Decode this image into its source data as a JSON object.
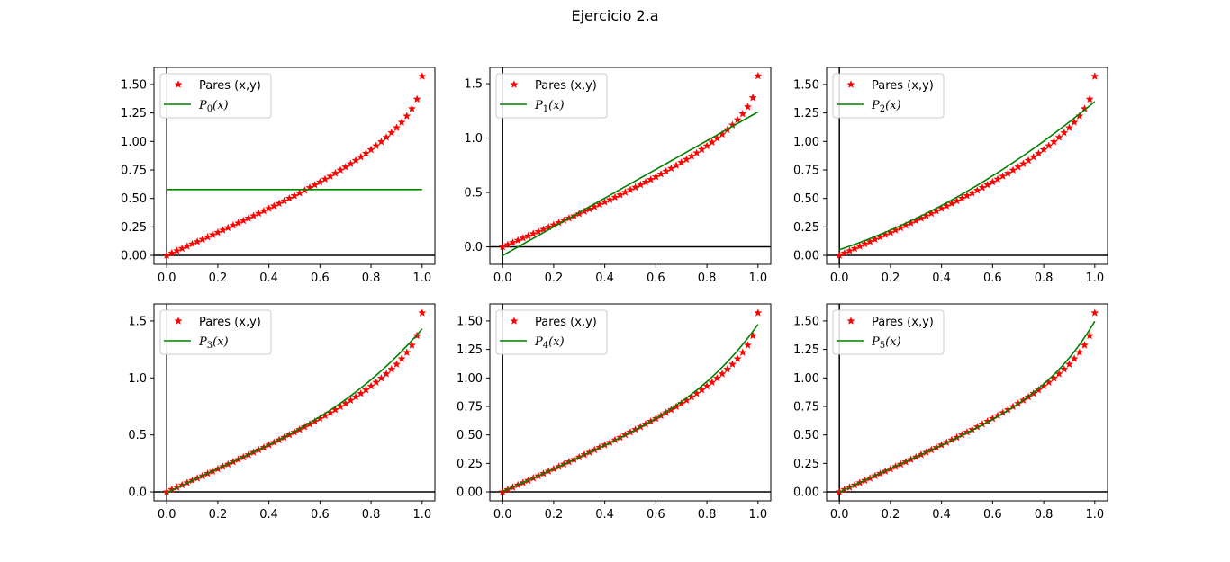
{
  "figure": {
    "title": "Ejercicio 2.a"
  },
  "colors": {
    "points": "#ff0000",
    "poly": "#008000",
    "axes": "#000000"
  },
  "chart_data": [
    {
      "type": "scatter",
      "title": "",
      "xlabel": "",
      "ylabel": "",
      "xlim": [
        -0.05,
        1.05
      ],
      "ylim": [
        -0.0785,
        1.6493
      ],
      "xticks": [
        0.0,
        0.2,
        0.4,
        0.6,
        0.8,
        1.0
      ],
      "xtick_labels": [
        "0.0",
        "0.2",
        "0.4",
        "0.6",
        "0.8",
        "1.0"
      ],
      "yticks": [
        0.0,
        0.25,
        0.5,
        0.75,
        1.0,
        1.25,
        1.5
      ],
      "ytick_labels": [
        "0.00",
        "0.25",
        "0.50",
        "0.75",
        "1.00",
        "1.25",
        "1.50"
      ],
      "legend": {
        "position": "upper-left",
        "entries": [
          "Pares (x,y)",
          "P_0(x)"
        ]
      },
      "series": [
        {
          "name": "Pares (x,y)",
          "kind": "points",
          "marker": "star",
          "x_range": [
            0,
            1
          ],
          "n_points": 51,
          "function": "arcsin(x)"
        },
        {
          "name": "P_0(x)",
          "kind": "line",
          "coefficients": [
            0.5774
          ]
        }
      ]
    },
    {
      "type": "scatter",
      "title": "",
      "xlabel": "",
      "ylabel": "",
      "xlim": [
        -0.05,
        1.05
      ],
      "ylim": [
        -0.1608,
        1.6493
      ],
      "xticks": [
        0.0,
        0.2,
        0.4,
        0.6,
        0.8,
        1.0
      ],
      "xtick_labels": [
        "0.0",
        "0.2",
        "0.4",
        "0.6",
        "0.8",
        "1.0"
      ],
      "yticks": [
        0.0,
        0.5,
        1.0,
        1.5
      ],
      "ytick_labels": [
        "0.0",
        "0.5",
        "1.0",
        "1.5"
      ],
      "legend": {
        "position": "upper-left",
        "entries": [
          "Pares (x,y)",
          "P_1(x)"
        ]
      },
      "series": [
        {
          "name": "Pares (x,y)",
          "kind": "points",
          "marker": "star",
          "x_range": [
            0,
            1
          ],
          "n_points": 51,
          "function": "arcsin(x)"
        },
        {
          "name": "P_1(x)",
          "kind": "line",
          "coefficients": [
            -0.08,
            1.32
          ]
        }
      ]
    },
    {
      "type": "scatter",
      "title": "",
      "xlabel": "",
      "ylabel": "",
      "xlim": [
        -0.05,
        1.05
      ],
      "ylim": [
        -0.0785,
        1.6493
      ],
      "xticks": [
        0.0,
        0.2,
        0.4,
        0.6,
        0.8,
        1.0
      ],
      "xtick_labels": [
        "0.0",
        "0.2",
        "0.4",
        "0.6",
        "0.8",
        "1.0"
      ],
      "yticks": [
        0.0,
        0.25,
        0.5,
        0.75,
        1.0,
        1.25,
        1.5
      ],
      "ytick_labels": [
        "0.00",
        "0.25",
        "0.50",
        "0.75",
        "1.00",
        "1.25",
        "1.50"
      ],
      "legend": {
        "position": "upper-left",
        "entries": [
          "Pares (x,y)",
          "P_2(x)"
        ]
      },
      "series": [
        {
          "name": "Pares (x,y)",
          "kind": "points",
          "marker": "star",
          "x_range": [
            0,
            1
          ],
          "n_points": 51,
          "function": "arcsin(x)"
        },
        {
          "name": "P_2(x)",
          "kind": "line",
          "coefficients": [
            0.05,
            0.75,
            0.55
          ]
        }
      ]
    },
    {
      "type": "scatter",
      "title": "",
      "xlabel": "",
      "ylabel": "",
      "xlim": [
        -0.05,
        1.05
      ],
      "ylim": [
        -0.0785,
        1.6493
      ],
      "xticks": [
        0.0,
        0.2,
        0.4,
        0.6,
        0.8,
        1.0
      ],
      "xtick_labels": [
        "0.0",
        "0.2",
        "0.4",
        "0.6",
        "0.8",
        "1.0"
      ],
      "yticks": [
        0.0,
        0.5,
        1.0,
        1.5
      ],
      "ytick_labels": [
        "0.0",
        "0.5",
        "1.0",
        "1.5"
      ],
      "legend": {
        "position": "upper-left",
        "entries": [
          "Pares (x,y)",
          "P_3(x)"
        ]
      },
      "series": [
        {
          "name": "Pares (x,y)",
          "kind": "points",
          "marker": "star",
          "x_range": [
            0,
            1
          ],
          "n_points": 51,
          "function": "arcsin(x)"
        },
        {
          "name": "P_3(x)",
          "kind": "line",
          "coefficients": [
            -0.01,
            1.16,
            -0.6,
            0.88
          ]
        }
      ]
    },
    {
      "type": "scatter",
      "title": "",
      "xlabel": "",
      "ylabel": "",
      "xlim": [
        -0.05,
        1.05
      ],
      "ylim": [
        -0.0785,
        1.6493
      ],
      "xticks": [
        0.0,
        0.2,
        0.4,
        0.6,
        0.8,
        1.0
      ],
      "xtick_labels": [
        "0.0",
        "0.2",
        "0.4",
        "0.6",
        "0.8",
        "1.0"
      ],
      "yticks": [
        0.0,
        0.25,
        0.5,
        0.75,
        1.0,
        1.25,
        1.5
      ],
      "ytick_labels": [
        "0.00",
        "0.25",
        "0.50",
        "0.75",
        "1.00",
        "1.25",
        "1.50"
      ],
      "legend": {
        "position": "upper-left",
        "entries": [
          "Pares (x,y)",
          "P_4(x)"
        ]
      },
      "series": [
        {
          "name": "Pares (x,y)",
          "kind": "points",
          "marker": "star",
          "x_range": [
            0,
            1
          ],
          "n_points": 51,
          "function": "arcsin(x)"
        },
        {
          "name": "P_4(x)",
          "kind": "line",
          "coefficients": [
            0.005,
            0.95,
            0.3,
            -0.75,
            0.965
          ]
        }
      ]
    },
    {
      "type": "scatter",
      "title": "",
      "xlabel": "",
      "ylabel": "",
      "xlim": [
        -0.05,
        1.05
      ],
      "ylim": [
        -0.0785,
        1.6493
      ],
      "xticks": [
        0.0,
        0.2,
        0.4,
        0.6,
        0.8,
        1.0
      ],
      "xtick_labels": [
        "0.0",
        "0.2",
        "0.4",
        "0.6",
        "0.8",
        "1.0"
      ],
      "yticks": [
        0.0,
        0.25,
        0.5,
        0.75,
        1.0,
        1.25,
        1.5
      ],
      "ytick_labels": [
        "0.00",
        "0.25",
        "0.50",
        "0.75",
        "1.00",
        "1.25",
        "1.50"
      ],
      "legend": {
        "position": "upper-left",
        "entries": [
          "Pares (x,y)",
          "P_5(x)"
        ]
      },
      "series": [
        {
          "name": "Pares (x,y)",
          "kind": "points",
          "marker": "star",
          "x_range": [
            0,
            1
          ],
          "n_points": 51,
          "function": "arcsin(x)"
        },
        {
          "name": "P_5(x)",
          "kind": "line",
          "coefficients": [
            -0.003,
            1.1,
            -0.5,
            1.4,
            -2.0,
            1.5
          ]
        }
      ]
    }
  ]
}
